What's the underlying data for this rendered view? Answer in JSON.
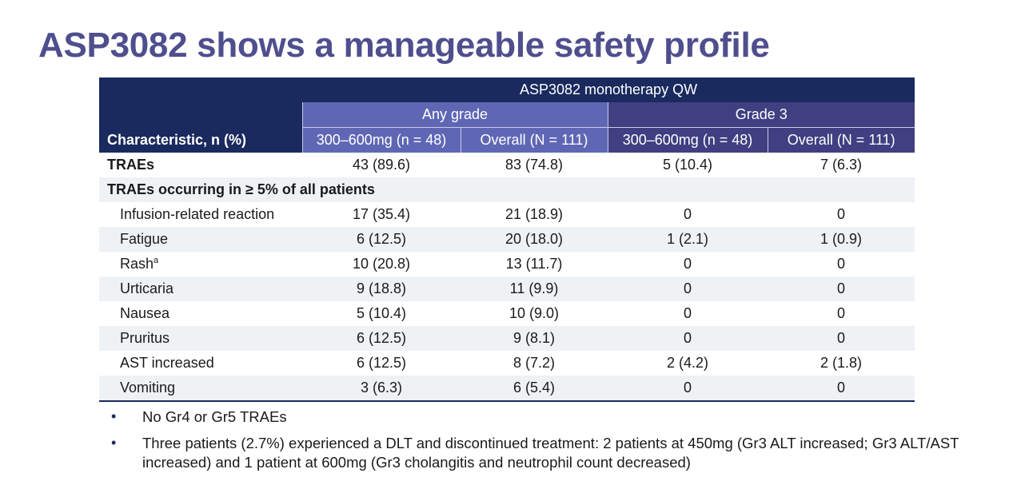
{
  "slide": {
    "title": "ASP3082 shows a manageable safety profile"
  },
  "table": {
    "characteristic_header": "Characteristic, n (%)",
    "group_header": "ASP3082 monotherapy QW",
    "subgroups": [
      "Any grade",
      "Grade 3"
    ],
    "columns": [
      "300–600mg (n = 48)",
      "Overall (N = 111)",
      "300–600mg (n = 48)",
      "Overall (N = 111)"
    ],
    "traes": {
      "label": "TRAEs",
      "values": [
        "43 (89.6)",
        "83 (74.8)",
        "5 (10.4)",
        "7 (6.3)"
      ]
    },
    "section_label": "TRAEs occurring in ≥ 5% of all patients",
    "rows": [
      {
        "label": "Infusion-related reaction",
        "sup": "",
        "values": [
          "17 (35.4)",
          "21 (18.9)",
          "0",
          "0"
        ]
      },
      {
        "label": "Fatigue",
        "sup": "",
        "values": [
          "6 (12.5)",
          "20 (18.0)",
          "1 (2.1)",
          "1 (0.9)"
        ]
      },
      {
        "label": "Rash",
        "sup": "a",
        "values": [
          "10 (20.8)",
          "13 (11.7)",
          "0",
          "0"
        ]
      },
      {
        "label": "Urticaria",
        "sup": "",
        "values": [
          "9 (18.8)",
          "11 (9.9)",
          "0",
          "0"
        ]
      },
      {
        "label": "Nausea",
        "sup": "",
        "values": [
          "5 (10.4)",
          "10 (9.0)",
          "0",
          "0"
        ]
      },
      {
        "label": "Pruritus",
        "sup": "",
        "values": [
          "6 (12.5)",
          "9 (8.1)",
          "0",
          "0"
        ]
      },
      {
        "label": "AST increased",
        "sup": "",
        "values": [
          "6 (12.5)",
          "8 (7.2)",
          "2 (4.2)",
          "2 (1.8)"
        ]
      },
      {
        "label": "Vomiting",
        "sup": "",
        "values": [
          "3 (6.3)",
          "6 (5.4)",
          "0",
          "0"
        ]
      }
    ]
  },
  "bullets": [
    "No Gr4 or Gr5 TRAEs",
    "Three patients (2.7%) experienced a DLT and discontinued treatment: 2 patients at 450mg (Gr3 ALT increased; Gr3 ALT/AST increased) and 1 patient at 600mg (Gr3 cholangitis and neutrophil count decreased)"
  ]
}
